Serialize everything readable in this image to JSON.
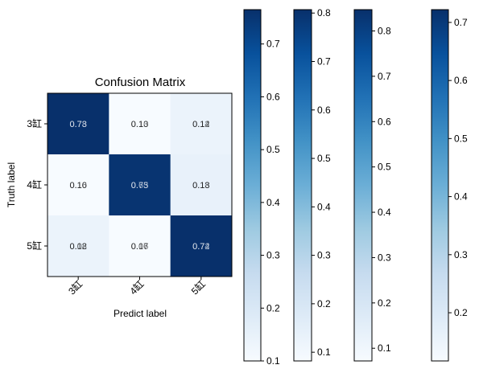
{
  "figure": {
    "title": "Confusion Matrix",
    "xlabel": "Predict label",
    "ylabel": "Truth label"
  },
  "chart_data": {
    "type": "heatmap",
    "title": "Confusion Matrix",
    "xlabel": "Predict label",
    "ylabel": "Truth label",
    "colormap": "Blues",
    "x_categories": [
      "3缸",
      "4缸",
      "5缸"
    ],
    "y_categories": [
      "3缸",
      "4缸",
      "5缸"
    ],
    "matrix": [
      [
        0.76,
        0.1,
        0.14
      ],
      [
        0.1,
        0.75,
        0.15
      ],
      [
        0.14,
        0.1,
        0.76
      ]
    ],
    "overlapping_cell_labels": [
      [
        [
          "0.73",
          "0.78"
        ],
        [
          "0.13",
          "0.10"
        ],
        [
          "0.14",
          "0.12"
        ]
      ],
      [
        [
          "0.16",
          "0.10"
        ],
        [
          "0.65",
          "0.73"
        ],
        [
          "0.13",
          "0.18"
        ]
      ],
      [
        [
          "0.08",
          "0.12"
        ],
        [
          "0.16",
          "0.07"
        ],
        [
          "0.72",
          "0.74"
        ]
      ]
    ],
    "colorbars": [
      {
        "ticks": [
          "0.1",
          "0.2",
          "0.3",
          "0.4",
          "0.5",
          "0.6",
          "0.7"
        ],
        "vmin": 0.1,
        "vmax": 0.765
      },
      {
        "ticks": [
          "0.1",
          "0.2",
          "0.3",
          "0.4",
          "0.5",
          "0.6",
          "0.7",
          "0.8"
        ],
        "vmin": 0.082,
        "vmax": 0.807
      },
      {
        "ticks": [
          "0.1",
          "0.2",
          "0.3",
          "0.4",
          "0.5",
          "0.6",
          "0.7",
          "0.8"
        ],
        "vmin": 0.072,
        "vmax": 0.847
      },
      {
        "ticks": [
          "0.2",
          "0.3",
          "0.4",
          "0.5",
          "0.6",
          "0.7"
        ],
        "vmin": 0.117,
        "vmax": 0.722
      }
    ]
  }
}
